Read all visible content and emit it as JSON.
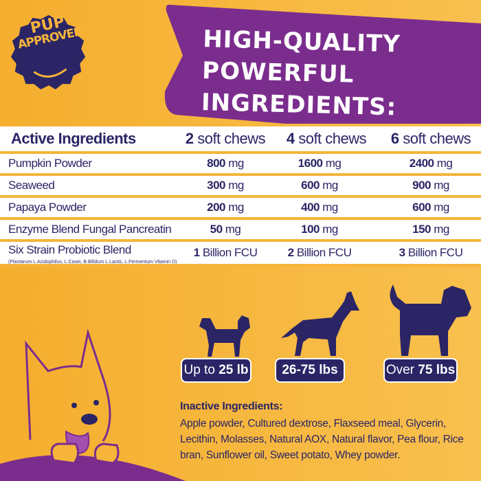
{
  "badge": {
    "line1": "PUP",
    "line2": "APPROVED"
  },
  "title": {
    "line1": "HIGH-QUALITY POWERFUL",
    "line2": "INGREDIENTS:"
  },
  "table": {
    "header": {
      "label": "Active Ingredients",
      "cols": [
        {
          "num": "2",
          "text": " soft chews"
        },
        {
          "num": "4",
          "text": " soft chews"
        },
        {
          "num": "6",
          "text": " soft chews"
        }
      ]
    },
    "rows": [
      {
        "name": "Pumpkin Powder",
        "values": [
          {
            "num": "800",
            "unit": " mg"
          },
          {
            "num": "1600",
            "unit": " mg"
          },
          {
            "num": "2400",
            "unit": " mg"
          }
        ]
      },
      {
        "name": "Seaweed",
        "values": [
          {
            "num": "300",
            "unit": " mg"
          },
          {
            "num": "600",
            "unit": " mg"
          },
          {
            "num": "900",
            "unit": " mg"
          }
        ]
      },
      {
        "name": "Papaya Powder",
        "values": [
          {
            "num": "200",
            "unit": " mg"
          },
          {
            "num": "400",
            "unit": " mg"
          },
          {
            "num": "600",
            "unit": " mg"
          }
        ]
      },
      {
        "name": "Enzyme Blend Fungal Pancreatin",
        "values": [
          {
            "num": "50",
            "unit": " mg"
          },
          {
            "num": "100",
            "unit": " mg"
          },
          {
            "num": "150",
            "unit": " mg"
          }
        ]
      },
      {
        "name": "Six Strain Probiotic Blend",
        "sub": "(Plantarum L.Acidophilus, L.Casei, B.Bifidum L.Lactis, L.Fermentum Vitamin D)",
        "values": [
          {
            "num": "1",
            "unit": " Billion FCU"
          },
          {
            "num": "2",
            "unit": " Billion FCU"
          },
          {
            "num": "3",
            "unit": " Billion FCU"
          }
        ]
      }
    ]
  },
  "sizes": [
    {
      "pre": "Up to ",
      "bold": "25 lb",
      "post": ""
    },
    {
      "pre": "",
      "bold": "26-75 lbs",
      "post": ""
    },
    {
      "pre": "Over ",
      "bold": "75 lbs",
      "post": ""
    }
  ],
  "inactive": {
    "heading": "Inactive Ingredients:",
    "text": "Apple powder, Cultured dextrose, Flaxseed meal, Glycerin, Lecithin, Molasses, Natural AOX, Natural flavor, Pea flour, Rice bran, Sunflower oil, Sweet potato, Whey powder."
  },
  "colors": {
    "background": "#f6b43a",
    "purple": "#7b2d8e",
    "navy": "#2b2566"
  }
}
